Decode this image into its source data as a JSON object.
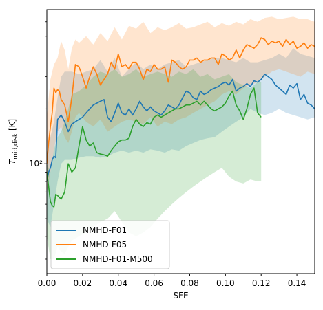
{
  "chart_data": {
    "type": "line",
    "xlabel": "SFE",
    "ylabel_main": "T",
    "ylabel_sub": "mid,disk",
    "ylabel_unit": " [K]",
    "xlim": [
      0.0,
      0.15
    ],
    "ylim": [
      25,
      700
    ],
    "yscale": "log",
    "xticks": [
      0.0,
      0.02,
      0.04,
      0.06,
      0.08,
      0.1,
      0.12,
      0.14
    ],
    "xtick_labels": [
      "0.00",
      "0.02",
      "0.04",
      "0.06",
      "0.08",
      "0.10",
      "0.12",
      "0.14"
    ],
    "ytick_major": [
      100
    ],
    "ytick_major_labels": [
      "10²"
    ],
    "ytick_minor": [
      30,
      40,
      50,
      60,
      70,
      80,
      90,
      200,
      300,
      400,
      500,
      600
    ],
    "legend_position": "lower-left",
    "grid": false,
    "series": [
      {
        "name": "NMHD-F01",
        "color": "#1f77b4",
        "x": [
          0.0,
          0.001,
          0.002,
          0.003,
          0.004,
          0.005,
          0.006,
          0.007,
          0.008,
          0.01,
          0.012,
          0.014,
          0.016,
          0.018,
          0.02,
          0.022,
          0.024,
          0.026,
          0.028,
          0.03,
          0.032,
          0.034,
          0.036,
          0.038,
          0.04,
          0.042,
          0.044,
          0.046,
          0.048,
          0.05,
          0.052,
          0.054,
          0.056,
          0.058,
          0.06,
          0.062,
          0.064,
          0.066,
          0.068,
          0.07,
          0.072,
          0.074,
          0.076,
          0.078,
          0.08,
          0.082,
          0.084,
          0.086,
          0.088,
          0.09,
          0.092,
          0.094,
          0.096,
          0.098,
          0.1,
          0.102,
          0.104,
          0.106,
          0.108,
          0.11,
          0.112,
          0.114,
          0.116,
          0.118,
          0.12,
          0.122,
          0.124,
          0.126,
          0.128,
          0.13,
          0.132,
          0.134,
          0.136,
          0.138,
          0.14,
          0.142,
          0.144,
          0.146,
          0.148,
          0.15
        ],
        "y": [
          80,
          90,
          95,
          105,
          110,
          108,
          175,
          180,
          185,
          170,
          150,
          165,
          170,
          175,
          180,
          190,
          200,
          210,
          215,
          220,
          225,
          180,
          170,
          190,
          215,
          190,
          185,
          200,
          185,
          200,
          220,
          205,
          195,
          205,
          195,
          190,
          185,
          195,
          210,
          205,
          200,
          210,
          230,
          250,
          245,
          230,
          225,
          250,
          240,
          245,
          255,
          260,
          265,
          275,
          280,
          270,
          290,
          250,
          260,
          265,
          275,
          265,
          285,
          280,
          290,
          310,
          300,
          290,
          270,
          260,
          250,
          240,
          270,
          260,
          275,
          225,
          240,
          215,
          210,
          200
        ]
      },
      {
        "name": "NMHD-F05",
        "color": "#ff7f0e",
        "x": [
          0.0,
          0.001,
          0.002,
          0.003,
          0.004,
          0.005,
          0.006,
          0.007,
          0.008,
          0.01,
          0.012,
          0.014,
          0.016,
          0.018,
          0.02,
          0.022,
          0.024,
          0.026,
          0.028,
          0.03,
          0.032,
          0.034,
          0.036,
          0.038,
          0.04,
          0.042,
          0.044,
          0.046,
          0.048,
          0.05,
          0.052,
          0.054,
          0.056,
          0.058,
          0.06,
          0.062,
          0.064,
          0.066,
          0.068,
          0.07,
          0.072,
          0.074,
          0.076,
          0.078,
          0.08,
          0.082,
          0.084,
          0.086,
          0.088,
          0.09,
          0.092,
          0.094,
          0.096,
          0.098,
          0.1,
          0.102,
          0.104,
          0.106,
          0.108,
          0.11,
          0.112,
          0.114,
          0.116,
          0.118,
          0.12,
          0.122,
          0.124,
          0.126,
          0.128,
          0.13,
          0.132,
          0.134,
          0.136,
          0.138,
          0.14,
          0.142,
          0.144,
          0.146,
          0.148,
          0.15
        ],
        "y": [
          100,
          130,
          160,
          190,
          260,
          245,
          255,
          250,
          225,
          210,
          170,
          230,
          350,
          340,
          300,
          260,
          300,
          340,
          310,
          270,
          290,
          310,
          360,
          330,
          400,
          340,
          350,
          330,
          360,
          360,
          330,
          290,
          330,
          320,
          350,
          330,
          330,
          340,
          280,
          370,
          360,
          340,
          330,
          340,
          370,
          370,
          380,
          360,
          370,
          370,
          380,
          380,
          350,
          400,
          390,
          370,
          380,
          420,
          380,
          420,
          450,
          440,
          430,
          450,
          490,
          480,
          450,
          470,
          460,
          470,
          440,
          480,
          450,
          470,
          430,
          440,
          460,
          430,
          450,
          440
        ]
      },
      {
        "name": "NMHD-F01-M500",
        "color": "#2ca02c",
        "x": [
          0.0,
          0.001,
          0.002,
          0.003,
          0.004,
          0.005,
          0.006,
          0.008,
          0.01,
          0.012,
          0.014,
          0.016,
          0.018,
          0.02,
          0.022,
          0.024,
          0.026,
          0.028,
          0.03,
          0.032,
          0.034,
          0.036,
          0.038,
          0.04,
          0.042,
          0.044,
          0.046,
          0.048,
          0.05,
          0.052,
          0.054,
          0.056,
          0.058,
          0.06,
          0.062,
          0.064,
          0.066,
          0.068,
          0.07,
          0.072,
          0.074,
          0.076,
          0.078,
          0.08,
          0.082,
          0.084,
          0.086,
          0.088,
          0.09,
          0.092,
          0.094,
          0.096,
          0.098,
          0.1,
          0.102,
          0.104,
          0.106,
          0.108,
          0.11,
          0.112,
          0.114,
          0.116,
          0.118,
          0.12
        ],
        "y": [
          90,
          75,
          62,
          59,
          58,
          68,
          67,
          64,
          70,
          100,
          90,
          95,
          125,
          160,
          135,
          125,
          130,
          115,
          113,
          112,
          110,
          118,
          125,
          132,
          135,
          135,
          138,
          160,
          175,
          165,
          160,
          168,
          165,
          180,
          185,
          180,
          185,
          190,
          195,
          200,
          200,
          205,
          210,
          210,
          215,
          220,
          210,
          220,
          210,
          200,
          195,
          200,
          205,
          215,
          235,
          250,
          210,
          195,
          175,
          200,
          240,
          260,
          190,
          180
        ]
      }
    ],
    "bands": [
      {
        "series": "NMHD-F01",
        "color": "#1f77b4",
        "x": [
          0.0,
          0.002,
          0.004,
          0.006,
          0.008,
          0.01,
          0.014,
          0.018,
          0.022,
          0.026,
          0.03,
          0.034,
          0.038,
          0.042,
          0.046,
          0.05,
          0.054,
          0.058,
          0.062,
          0.066,
          0.07,
          0.074,
          0.078,
          0.082,
          0.086,
          0.09,
          0.094,
          0.098,
          0.102,
          0.106,
          0.11,
          0.114,
          0.118,
          0.122,
          0.126,
          0.13,
          0.134,
          0.138,
          0.142,
          0.146,
          0.15
        ],
        "upper": [
          110,
          140,
          170,
          230,
          300,
          320,
          320,
          310,
          320,
          330,
          370,
          320,
          380,
          300,
          330,
          360,
          330,
          350,
          330,
          350,
          360,
          370,
          340,
          350,
          360,
          370,
          380,
          380,
          370,
          360,
          380,
          360,
          360,
          370,
          380,
          400,
          380,
          430,
          400,
          390,
          380
        ],
        "lower": [
          50,
          45,
          60,
          80,
          100,
          105,
          105,
          108,
          110,
          110,
          108,
          110,
          115,
          118,
          115,
          118,
          115,
          120,
          118,
          115,
          120,
          118,
          125,
          130,
          135,
          138,
          140,
          150,
          160,
          170,
          180,
          200,
          190,
          185,
          190,
          200,
          190,
          185,
          180,
          175,
          180
        ]
      },
      {
        "series": "NMHD-F05",
        "color": "#ff7f0e",
        "x": [
          0.0,
          0.002,
          0.004,
          0.006,
          0.008,
          0.01,
          0.012,
          0.014,
          0.016,
          0.018,
          0.022,
          0.026,
          0.03,
          0.034,
          0.038,
          0.042,
          0.046,
          0.05,
          0.054,
          0.058,
          0.062,
          0.066,
          0.07,
          0.074,
          0.078,
          0.082,
          0.086,
          0.09,
          0.094,
          0.098,
          0.102,
          0.106,
          0.11,
          0.114,
          0.118,
          0.122,
          0.126,
          0.13,
          0.134,
          0.138,
          0.142,
          0.146,
          0.15
        ],
        "upper": [
          180,
          290,
          350,
          380,
          470,
          420,
          330,
          430,
          480,
          460,
          500,
          450,
          520,
          470,
          560,
          480,
          570,
          550,
          600,
          520,
          560,
          540,
          560,
          590,
          550,
          560,
          580,
          600,
          560,
          590,
          570,
          600,
          580,
          620,
          600,
          630,
          640,
          620,
          630,
          640,
          620,
          620,
          600
        ],
        "lower": [
          70,
          90,
          120,
          150,
          160,
          140,
          130,
          150,
          180,
          190,
          170,
          160,
          175,
          150,
          160,
          170,
          175,
          170,
          165,
          180,
          160,
          170,
          165,
          175,
          180,
          190,
          200,
          210,
          220,
          240,
          250,
          240,
          260,
          270,
          280,
          300,
          320,
          330,
          320,
          310,
          300,
          320,
          310
        ]
      },
      {
        "series": "NMHD-F01-M500",
        "color": "#2ca02c",
        "x": [
          0.0,
          0.002,
          0.004,
          0.006,
          0.008,
          0.01,
          0.012,
          0.014,
          0.018,
          0.022,
          0.026,
          0.03,
          0.034,
          0.038,
          0.042,
          0.046,
          0.05,
          0.054,
          0.058,
          0.062,
          0.066,
          0.07,
          0.074,
          0.078,
          0.082,
          0.086,
          0.09,
          0.094,
          0.098,
          0.102,
          0.106,
          0.11,
          0.114,
          0.118,
          0.12
        ],
        "upper": [
          100,
          90,
          120,
          140,
          150,
          170,
          200,
          240,
          250,
          270,
          300,
          320,
          310,
          330,
          300,
          310,
          330,
          300,
          310,
          320,
          310,
          300,
          320,
          310,
          330,
          300,
          310,
          290,
          300,
          310,
          280,
          270,
          260,
          280,
          280
        ],
        "lower": [
          40,
          30,
          30,
          35,
          33,
          32,
          35,
          38,
          40,
          42,
          45,
          48,
          50,
          55,
          48,
          42,
          40,
          42,
          45,
          50,
          55,
          60,
          65,
          70,
          75,
          80,
          85,
          90,
          95,
          85,
          80,
          78,
          82,
          80,
          80
        ]
      }
    ]
  }
}
